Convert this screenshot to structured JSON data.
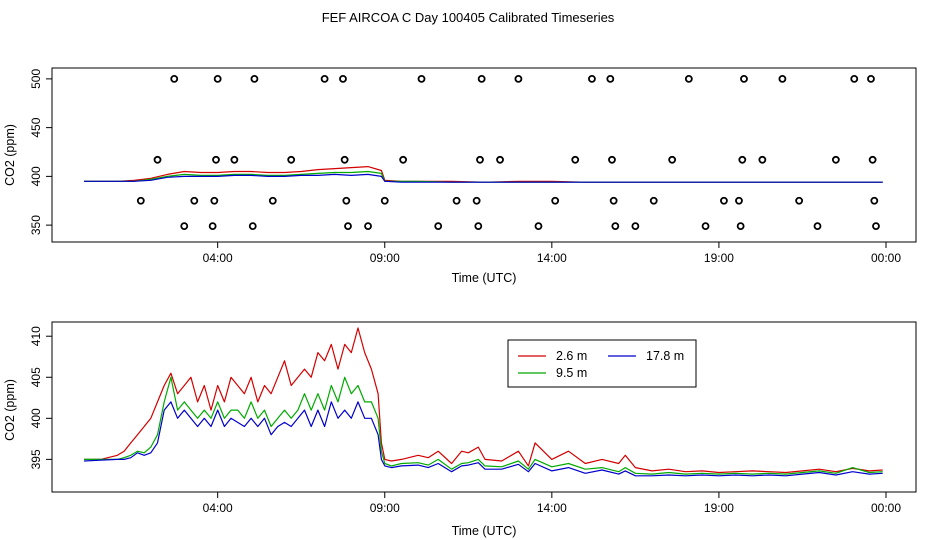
{
  "title": "FEF AIRCOA C  Day 100405  Calibrated Timeseries",
  "colors": {
    "s1": "#d40000",
    "s2": "#00aa00",
    "s3": "#0000cc",
    "marker": "#000000"
  },
  "chart_data": [
    {
      "type": "scatter",
      "xlabel": "Time (UTC)",
      "ylabel": "CO2 (ppm)",
      "xlim": [
        0.0,
        24.0
      ],
      "ylim": [
        345,
        505
      ],
      "x_ticks": [
        4,
        9,
        14,
        19,
        24
      ],
      "x_tick_labels": [
        "04:00",
        "09:00",
        "14:00",
        "19:00",
        "00:00"
      ],
      "y_ticks": [
        350,
        400,
        450,
        500
      ],
      "y_tick_labels": [
        "350",
        "400",
        "450",
        "500"
      ],
      "markers": [
        [
          1.7,
          375
        ],
        [
          2.2,
          417
        ],
        [
          3.0,
          349
        ],
        [
          2.7,
          500
        ],
        [
          3.3,
          375
        ],
        [
          3.85,
          349
        ],
        [
          3.9,
          375
        ],
        [
          3.95,
          417
        ],
        [
          4.0,
          500
        ],
        [
          4.5,
          417
        ],
        [
          5.05,
          349
        ],
        [
          5.1,
          500
        ],
        [
          5.65,
          375
        ],
        [
          6.2,
          417
        ],
        [
          7.2,
          500
        ],
        [
          7.75,
          500
        ],
        [
          7.8,
          417
        ],
        [
          7.85,
          375
        ],
        [
          7.9,
          349
        ],
        [
          8.5,
          349
        ],
        [
          9.0,
          375
        ],
        [
          9.55,
          417
        ],
        [
          10.1,
          500
        ],
        [
          10.6,
          349
        ],
        [
          11.15,
          375
        ],
        [
          11.75,
          375
        ],
        [
          11.8,
          349
        ],
        [
          11.85,
          417
        ],
        [
          11.9,
          500
        ],
        [
          12.45,
          417
        ],
        [
          13.0,
          500
        ],
        [
          13.6,
          349
        ],
        [
          14.1,
          375
        ],
        [
          14.7,
          417
        ],
        [
          15.2,
          500
        ],
        [
          15.75,
          500
        ],
        [
          15.8,
          417
        ],
        [
          15.85,
          375
        ],
        [
          15.9,
          349
        ],
        [
          16.5,
          349
        ],
        [
          17.05,
          375
        ],
        [
          17.6,
          417
        ],
        [
          18.1,
          500
        ],
        [
          18.6,
          349
        ],
        [
          19.15,
          375
        ],
        [
          19.6,
          375
        ],
        [
          19.65,
          349
        ],
        [
          19.7,
          417
        ],
        [
          19.75,
          500
        ],
        [
          20.3,
          417
        ],
        [
          20.9,
          500
        ],
        [
          21.4,
          375
        ],
        [
          21.95,
          349
        ],
        [
          22.5,
          417
        ],
        [
          23.05,
          500
        ],
        [
          23.55,
          500
        ],
        [
          23.6,
          417
        ],
        [
          23.65,
          375
        ],
        [
          23.7,
          349
        ]
      ],
      "series": [
        {
          "color": "#d40000",
          "x": [
            0.0,
            1.0,
            1.5,
            2.0,
            2.5,
            3.0,
            3.5,
            4.0,
            4.5,
            5.0,
            5.5,
            6.0,
            6.5,
            7.0,
            7.5,
            8.0,
            8.5,
            8.9,
            9.0,
            9.5,
            10.0,
            11.0,
            12.0,
            13.0,
            14.0,
            15.0,
            16.0,
            17.0,
            18.0,
            19.0,
            20.0,
            21.0,
            22.0,
            23.0,
            23.9
          ],
          "values": [
            395,
            395,
            396,
            398,
            402,
            405,
            404,
            404,
            405,
            405,
            404,
            404,
            405,
            407,
            408,
            409,
            410,
            406,
            396,
            395,
            395,
            395,
            394,
            395,
            395,
            394,
            394,
            394,
            394,
            394,
            394,
            394,
            394,
            394,
            394
          ]
        },
        {
          "color": "#00aa00",
          "x": [
            0.0,
            1.0,
            1.5,
            2.0,
            2.5,
            3.0,
            3.5,
            4.0,
            4.5,
            5.0,
            5.5,
            6.0,
            6.5,
            7.0,
            7.5,
            8.0,
            8.5,
            8.9,
            9.0,
            9.5,
            10.0,
            11.0,
            12.0,
            13.0,
            14.0,
            15.0,
            16.0,
            17.0,
            18.0,
            19.0,
            20.0,
            21.0,
            22.0,
            23.0,
            23.9
          ],
          "values": [
            395,
            395,
            395,
            397,
            400,
            402,
            401,
            401,
            402,
            402,
            401,
            401,
            402,
            403,
            404,
            404,
            405,
            403,
            395,
            395,
            395,
            394,
            394,
            394,
            394,
            394,
            394,
            394,
            394,
            394,
            394,
            394,
            394,
            394,
            394
          ]
        },
        {
          "color": "#0000cc",
          "x": [
            0.0,
            1.0,
            1.5,
            2.0,
            2.5,
            3.0,
            3.5,
            4.0,
            4.5,
            5.0,
            5.5,
            6.0,
            6.5,
            7.0,
            7.5,
            8.0,
            8.5,
            8.9,
            9.0,
            9.5,
            10.0,
            11.0,
            12.0,
            13.0,
            14.0,
            15.0,
            16.0,
            17.0,
            18.0,
            19.0,
            20.0,
            21.0,
            22.0,
            23.0,
            23.9
          ],
          "values": [
            395,
            395,
            395,
            396,
            399,
            400,
            400,
            400,
            401,
            401,
            400,
            400,
            401,
            401,
            402,
            401,
            402,
            400,
            395,
            394,
            394,
            394,
            394,
            394,
            394,
            394,
            394,
            394,
            394,
            394,
            394,
            394,
            394,
            394,
            394
          ]
        }
      ]
    },
    {
      "type": "line",
      "xlabel": "Time (UTC)",
      "ylabel": "CO2 (ppm)",
      "xlim": [
        0.0,
        24.0
      ],
      "ylim": [
        392,
        411
      ],
      "x_ticks": [
        4,
        9,
        14,
        19,
        24
      ],
      "x_tick_labels": [
        "04:00",
        "09:00",
        "14:00",
        "19:00",
        "00:00"
      ],
      "y_ticks": [
        395,
        400,
        405,
        410
      ],
      "y_tick_labels": [
        "395",
        "400",
        "405",
        "410"
      ],
      "legend": {
        "placement": "top-center"
      },
      "x": [
        0.0,
        0.5,
        1.0,
        1.2,
        1.4,
        1.6,
        1.8,
        2.0,
        2.2,
        2.4,
        2.6,
        2.8,
        3.0,
        3.2,
        3.4,
        3.6,
        3.8,
        4.0,
        4.2,
        4.4,
        4.6,
        4.8,
        5.0,
        5.2,
        5.4,
        5.6,
        5.8,
        6.0,
        6.2,
        6.4,
        6.6,
        6.8,
        7.0,
        7.2,
        7.4,
        7.6,
        7.8,
        8.0,
        8.2,
        8.4,
        8.6,
        8.8,
        8.9,
        9.0,
        9.2,
        9.5,
        10.0,
        10.3,
        10.6,
        11.0,
        11.3,
        11.5,
        11.8,
        12.0,
        12.5,
        13.0,
        13.3,
        13.5,
        14.0,
        14.5,
        15.0,
        15.5,
        16.0,
        16.2,
        16.5,
        17.0,
        17.5,
        18.0,
        18.5,
        19.0,
        19.5,
        20.0,
        20.5,
        21.0,
        21.5,
        22.0,
        22.5,
        23.0,
        23.5,
        23.9
      ],
      "series": [
        {
          "name": "2.6 m",
          "color": "#d40000",
          "values": [
            395,
            395,
            395.5,
            396,
            397,
            398,
            399,
            400,
            402,
            404,
            405.5,
            403,
            404,
            405,
            402,
            404,
            401,
            404,
            402,
            405,
            404,
            403,
            405,
            402,
            404,
            403,
            405,
            407,
            404,
            405,
            406,
            405,
            408,
            407,
            409,
            406,
            409,
            408,
            411,
            408,
            406,
            403,
            397,
            395,
            394.8,
            395,
            395.5,
            395.2,
            396,
            394.5,
            396,
            395.8,
            396.5,
            395,
            394.8,
            396,
            394.2,
            397,
            395,
            396,
            394.5,
            395,
            394.5,
            395.5,
            394,
            393.6,
            393.8,
            393.5,
            393.6,
            393.4,
            393.5,
            393.6,
            393.5,
            393.4,
            393.6,
            393.8,
            393.5,
            393.9,
            393.6,
            393.7
          ]
        },
        {
          "name": "9.5 m",
          "color": "#00aa00",
          "values": [
            395,
            395,
            395,
            395.2,
            395.5,
            396,
            395.8,
            396.5,
            398,
            402,
            405,
            401,
            402,
            401,
            400,
            401,
            400,
            402,
            400,
            401,
            401,
            400,
            402,
            400,
            401,
            399,
            400,
            401,
            400,
            401,
            403,
            401,
            403,
            401,
            404,
            402,
            405,
            403,
            404,
            402,
            402,
            400,
            396,
            394.5,
            394.2,
            394.5,
            394.6,
            394.3,
            395,
            393.8,
            394.5,
            394.6,
            395,
            394.2,
            394.1,
            394.8,
            393.8,
            395,
            394.1,
            394.5,
            393.8,
            394,
            393.5,
            394,
            393.3,
            393.2,
            393.4,
            393.2,
            393.3,
            393.2,
            393.3,
            393.2,
            393.3,
            393.2,
            393.4,
            393.6,
            393.3,
            394,
            393.4,
            393.5
          ]
        },
        {
          "name": "17.8 m",
          "color": "#0000cc",
          "values": [
            394.8,
            394.9,
            395,
            395,
            395.2,
            395.8,
            395.5,
            395.8,
            397,
            401,
            402,
            400,
            401,
            400,
            399,
            400,
            399,
            401,
            399,
            400,
            399.5,
            399,
            400,
            399,
            400,
            398,
            399,
            399.5,
            399,
            400,
            401,
            399,
            401,
            399,
            402,
            400,
            401,
            400,
            402,
            400,
            400,
            398,
            395,
            394.2,
            394,
            394.2,
            394.3,
            394,
            394.5,
            393.5,
            394.2,
            394.3,
            394.6,
            393.8,
            393.8,
            394.4,
            393.5,
            394.5,
            393.6,
            394,
            393.3,
            393.7,
            393.2,
            393.6,
            393,
            393,
            393.1,
            393,
            393.1,
            393,
            393.1,
            393,
            393.1,
            393,
            393.2,
            393.4,
            393.1,
            393.5,
            393.2,
            393.3
          ]
        }
      ]
    }
  ]
}
